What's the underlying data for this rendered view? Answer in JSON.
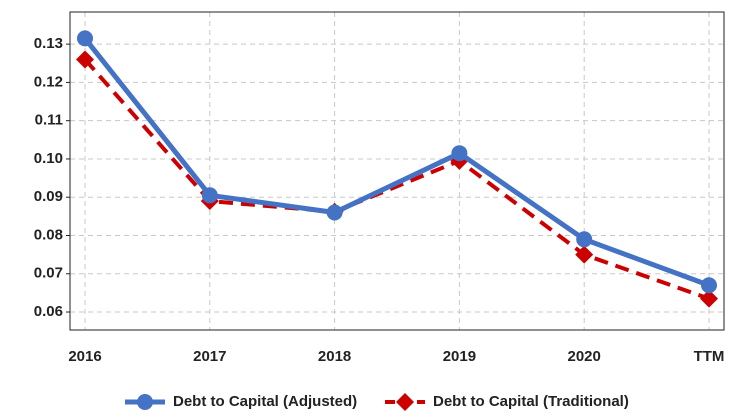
{
  "chart_data": {
    "type": "line",
    "categories": [
      "2016",
      "2017",
      "2018",
      "2019",
      "2020",
      "TTM"
    ],
    "series": [
      {
        "name": "Debt to Capital (Adjusted)",
        "color": "#4472c4",
        "values": [
          0.1315,
          0.0905,
          0.086,
          0.1015,
          0.079,
          0.067
        ]
      },
      {
        "name": "Debt to Capital (Traditional)",
        "color": "#cc0000",
        "values": [
          0.126,
          0.089,
          0.0862,
          0.0995,
          0.075,
          0.0635
        ]
      }
    ],
    "ylim": [
      0.0553,
      0.1384
    ],
    "yticks": [
      0.06,
      0.07,
      0.08,
      0.09,
      {
        "value": 0.1,
        "label": "0.10"
      },
      0.11,
      0.12,
      0.13
    ],
    "grid": true,
    "legend": "bottom"
  }
}
